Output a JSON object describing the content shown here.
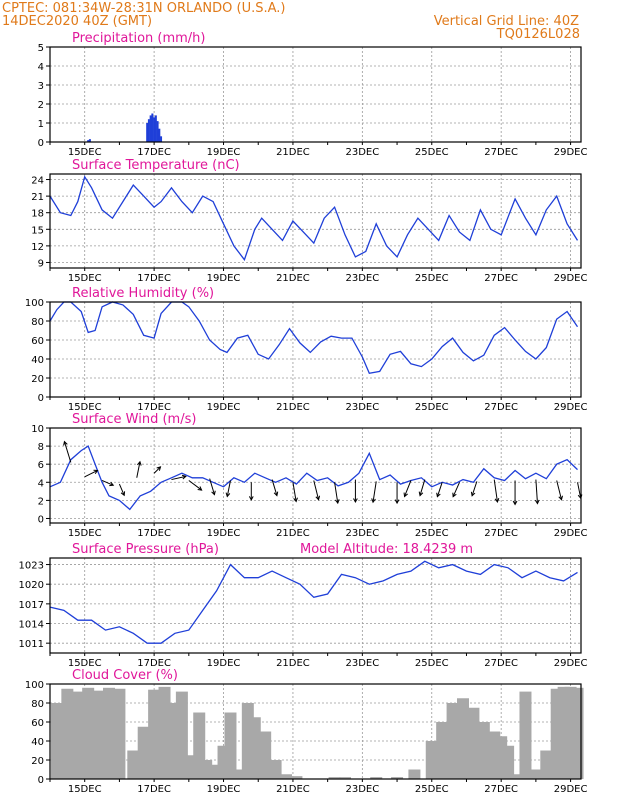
{
  "header": {
    "line1": "CPTEC:   081:34W-28:31N   ORLANDO (U.S.A.)",
    "line2": "14DEC2020 40Z (GMT)",
    "right1": "Vertical Grid Line: 40Z",
    "right2": "TQ0126L028"
  },
  "colors": {
    "header": "#e07a1a",
    "title": "#e0179a",
    "line": "#1f3fd8",
    "cloud": "#a8a8a8",
    "grid": "#9a9a9a"
  },
  "x_tick_labels": [
    "15DEC",
    "17DEC",
    "19DEC",
    "21DEC",
    "23DEC",
    "25DEC",
    "27DEC",
    "29DEC"
  ],
  "chart_data": [
    {
      "type": "bar",
      "id": "precip",
      "title": "Precipitation (mm/h)",
      "xrange": [
        0,
        15.3
      ],
      "ylim": [
        0,
        5
      ],
      "yticks": [
        0,
        1,
        2,
        3,
        4,
        5
      ],
      "grid": true,
      "points": [
        [
          1.1,
          0.1
        ],
        [
          1.15,
          0.15
        ],
        [
          2.8,
          1.0
        ],
        [
          2.85,
          1.2
        ],
        [
          2.9,
          1.4
        ],
        [
          2.95,
          1.5
        ],
        [
          3.0,
          1.3
        ],
        [
          3.05,
          1.4
        ],
        [
          3.1,
          1.1
        ],
        [
          3.15,
          0.7
        ],
        [
          3.2,
          0.3
        ]
      ]
    },
    {
      "type": "line",
      "id": "temp",
      "title": "Surface Temperature (nC)",
      "xrange": [
        0,
        15.3
      ],
      "ylim": [
        8,
        25
      ],
      "yticks": [
        9,
        12,
        15,
        18,
        21,
        24
      ],
      "grid": true,
      "points": [
        [
          0.0,
          21
        ],
        [
          0.3,
          18
        ],
        [
          0.6,
          17.5
        ],
        [
          0.8,
          20
        ],
        [
          1.0,
          24.5
        ],
        [
          1.2,
          22.5
        ],
        [
          1.5,
          18.5
        ],
        [
          1.8,
          17
        ],
        [
          2.1,
          20
        ],
        [
          2.4,
          23
        ],
        [
          2.7,
          21
        ],
        [
          3.0,
          19
        ],
        [
          3.2,
          20
        ],
        [
          3.5,
          22.5
        ],
        [
          3.8,
          20
        ],
        [
          4.1,
          18
        ],
        [
          4.4,
          21
        ],
        [
          4.7,
          20
        ],
        [
          5.0,
          16
        ],
        [
          5.3,
          12
        ],
        [
          5.6,
          9.5
        ],
        [
          5.9,
          15
        ],
        [
          6.1,
          17
        ],
        [
          6.4,
          15
        ],
        [
          6.7,
          13
        ],
        [
          7.0,
          16.5
        ],
        [
          7.3,
          14.5
        ],
        [
          7.6,
          12.5
        ],
        [
          7.9,
          17
        ],
        [
          8.2,
          19
        ],
        [
          8.5,
          14
        ],
        [
          8.8,
          10
        ],
        [
          9.1,
          11
        ],
        [
          9.4,
          16
        ],
        [
          9.7,
          12
        ],
        [
          10.0,
          10
        ],
        [
          10.3,
          14
        ],
        [
          10.6,
          17
        ],
        [
          10.9,
          15
        ],
        [
          11.2,
          13
        ],
        [
          11.5,
          17.5
        ],
        [
          11.8,
          14.5
        ],
        [
          12.1,
          13
        ],
        [
          12.4,
          18.5
        ],
        [
          12.7,
          15
        ],
        [
          13.0,
          14
        ],
        [
          13.4,
          20.5
        ],
        [
          13.7,
          17
        ],
        [
          14.0,
          14
        ],
        [
          14.3,
          18.5
        ],
        [
          14.6,
          21
        ],
        [
          14.9,
          16
        ],
        [
          15.2,
          13
        ]
      ]
    },
    {
      "type": "line",
      "id": "humidity",
      "title": "Relative Humidity (%)",
      "xrange": [
        0,
        15.3
      ],
      "ylim": [
        0,
        100
      ],
      "yticks": [
        0,
        20,
        40,
        60,
        80,
        100
      ],
      "grid": true,
      "points": [
        [
          0.0,
          80
        ],
        [
          0.2,
          92
        ],
        [
          0.4,
          100
        ],
        [
          0.6,
          100
        ],
        [
          0.9,
          90
        ],
        [
          1.1,
          68
        ],
        [
          1.3,
          70
        ],
        [
          1.5,
          95
        ],
        [
          1.8,
          100
        ],
        [
          2.1,
          97
        ],
        [
          2.4,
          87
        ],
        [
          2.7,
          65
        ],
        [
          3.0,
          62
        ],
        [
          3.2,
          88
        ],
        [
          3.5,
          100
        ],
        [
          3.8,
          100
        ],
        [
          4.0,
          95
        ],
        [
          4.3,
          80
        ],
        [
          4.6,
          60
        ],
        [
          4.9,
          50
        ],
        [
          5.1,
          47
        ],
        [
          5.4,
          62
        ],
        [
          5.7,
          65
        ],
        [
          6.0,
          45
        ],
        [
          6.3,
          40
        ],
        [
          6.6,
          55
        ],
        [
          6.9,
          72
        ],
        [
          7.2,
          57
        ],
        [
          7.5,
          47
        ],
        [
          7.8,
          58
        ],
        [
          8.1,
          64
        ],
        [
          8.4,
          62
        ],
        [
          8.7,
          62
        ],
        [
          9.0,
          42
        ],
        [
          9.2,
          25
        ],
        [
          9.5,
          27
        ],
        [
          9.8,
          45
        ],
        [
          10.1,
          48
        ],
        [
          10.4,
          35
        ],
        [
          10.7,
          32
        ],
        [
          11.0,
          40
        ],
        [
          11.3,
          53
        ],
        [
          11.6,
          62
        ],
        [
          11.9,
          47
        ],
        [
          12.2,
          38
        ],
        [
          12.5,
          44
        ],
        [
          12.8,
          65
        ],
        [
          13.1,
          73
        ],
        [
          13.4,
          60
        ],
        [
          13.7,
          48
        ],
        [
          14.0,
          40
        ],
        [
          14.3,
          52
        ],
        [
          14.6,
          82
        ],
        [
          14.9,
          90
        ],
        [
          15.2,
          74
        ]
      ]
    },
    {
      "type": "line",
      "id": "wind",
      "title": "Surface Wind (m/s)",
      "xrange": [
        0,
        15.3
      ],
      "ylim": [
        -0.5,
        10
      ],
      "yticks": [
        0,
        2,
        4,
        6,
        8,
        10
      ],
      "grid": true,
      "points": [
        [
          0.0,
          3.5
        ],
        [
          0.3,
          4
        ],
        [
          0.6,
          6.5
        ],
        [
          0.9,
          7.5
        ],
        [
          1.1,
          8
        ],
        [
          1.3,
          6
        ],
        [
          1.5,
          4
        ],
        [
          1.7,
          2.5
        ],
        [
          2.0,
          2
        ],
        [
          2.3,
          1
        ],
        [
          2.6,
          2.5
        ],
        [
          2.9,
          3
        ],
        [
          3.2,
          4
        ],
        [
          3.5,
          4.5
        ],
        [
          3.8,
          5
        ],
        [
          4.1,
          4.5
        ],
        [
          4.4,
          4.5
        ],
        [
          4.7,
          4
        ],
        [
          5.0,
          3.5
        ],
        [
          5.3,
          4.5
        ],
        [
          5.6,
          4
        ],
        [
          5.9,
          5
        ],
        [
          6.2,
          4.5
        ],
        [
          6.5,
          4
        ],
        [
          6.8,
          4.5
        ],
        [
          7.1,
          3.8
        ],
        [
          7.4,
          5
        ],
        [
          7.7,
          4.2
        ],
        [
          8.0,
          4.5
        ],
        [
          8.3,
          3.6
        ],
        [
          8.6,
          4
        ],
        [
          8.9,
          5
        ],
        [
          9.2,
          7.2
        ],
        [
          9.5,
          4.3
        ],
        [
          9.8,
          4.8
        ],
        [
          10.1,
          3.8
        ],
        [
          10.4,
          4.2
        ],
        [
          10.7,
          4.5
        ],
        [
          11.0,
          3.5
        ],
        [
          11.3,
          4
        ],
        [
          11.6,
          3.7
        ],
        [
          11.9,
          4.3
        ],
        [
          12.2,
          4
        ],
        [
          12.5,
          5.5
        ],
        [
          12.8,
          4.5
        ],
        [
          13.1,
          4.2
        ],
        [
          13.4,
          5.3
        ],
        [
          13.7,
          4.4
        ],
        [
          14.0,
          5
        ],
        [
          14.3,
          4.4
        ],
        [
          14.6,
          6
        ],
        [
          14.9,
          6.5
        ],
        [
          15.2,
          5.4
        ]
      ]
    },
    {
      "type": "line",
      "id": "pressure",
      "title": "Surface Pressure (hPa)",
      "annotation": "Model Altitude: 18.4239 m",
      "xrange": [
        0,
        15.3
      ],
      "ylim": [
        1009.5,
        1024
      ],
      "yticks": [
        1011,
        1014,
        1017,
        1020,
        1023
      ],
      "grid": true,
      "points": [
        [
          0.0,
          1016.5
        ],
        [
          0.4,
          1016
        ],
        [
          0.8,
          1014.5
        ],
        [
          1.2,
          1014.5
        ],
        [
          1.6,
          1013
        ],
        [
          2.0,
          1013.5
        ],
        [
          2.4,
          1012.5
        ],
        [
          2.8,
          1011
        ],
        [
          3.2,
          1011
        ],
        [
          3.6,
          1012.5
        ],
        [
          4.0,
          1013
        ],
        [
          4.4,
          1016
        ],
        [
          4.8,
          1019
        ],
        [
          5.2,
          1023
        ],
        [
          5.6,
          1021
        ],
        [
          6.0,
          1021
        ],
        [
          6.4,
          1022
        ],
        [
          6.8,
          1021
        ],
        [
          7.2,
          1020
        ],
        [
          7.6,
          1018
        ],
        [
          8.0,
          1018.5
        ],
        [
          8.4,
          1021.5
        ],
        [
          8.8,
          1021
        ],
        [
          9.2,
          1020
        ],
        [
          9.6,
          1020.5
        ],
        [
          10.0,
          1021.5
        ],
        [
          10.4,
          1022
        ],
        [
          10.8,
          1023.5
        ],
        [
          11.2,
          1022.5
        ],
        [
          11.6,
          1023
        ],
        [
          12.0,
          1022
        ],
        [
          12.4,
          1021.5
        ],
        [
          12.8,
          1023
        ],
        [
          13.2,
          1022.5
        ],
        [
          13.6,
          1021
        ],
        [
          14.0,
          1022
        ],
        [
          14.4,
          1021
        ],
        [
          14.8,
          1020.5
        ],
        [
          15.2,
          1021.8
        ]
      ]
    },
    {
      "type": "bar",
      "id": "cloud",
      "title": "Cloud Cover (%)",
      "xrange": [
        0,
        15.3
      ],
      "ylim": [
        0,
        100
      ],
      "yticks": [
        0,
        20,
        40,
        60,
        80,
        100
      ],
      "grid": true,
      "points": [
        [
          0.2,
          80
        ],
        [
          0.5,
          95
        ],
        [
          0.8,
          92
        ],
        [
          1.1,
          96
        ],
        [
          1.4,
          93
        ],
        [
          1.7,
          96
        ],
        [
          2.0,
          95
        ],
        [
          2.4,
          30
        ],
        [
          2.7,
          55
        ],
        [
          3.0,
          94
        ],
        [
          3.3,
          97
        ],
        [
          3.6,
          80
        ],
        [
          3.8,
          92
        ],
        [
          4.1,
          25
        ],
        [
          4.3,
          70
        ],
        [
          4.5,
          20
        ],
        [
          4.8,
          15
        ],
        [
          5.0,
          35
        ],
        [
          5.2,
          70
        ],
        [
          5.5,
          10
        ],
        [
          5.7,
          80
        ],
        [
          5.9,
          65
        ],
        [
          6.2,
          50
        ],
        [
          6.5,
          20
        ],
        [
          6.8,
          5
        ],
        [
          7.1,
          3
        ],
        [
          8.2,
          2
        ],
        [
          8.5,
          2
        ],
        [
          9.4,
          2
        ],
        [
          10.0,
          2
        ],
        [
          10.5,
          10
        ],
        [
          11.0,
          40
        ],
        [
          11.3,
          60
        ],
        [
          11.6,
          80
        ],
        [
          11.9,
          85
        ],
        [
          12.2,
          75
        ],
        [
          12.5,
          60
        ],
        [
          12.8,
          50
        ],
        [
          13.0,
          45
        ],
        [
          13.2,
          35
        ],
        [
          13.5,
          5
        ],
        [
          13.7,
          92
        ],
        [
          14.0,
          10
        ],
        [
          14.3,
          30
        ],
        [
          14.6,
          95
        ],
        [
          14.8,
          97
        ],
        [
          15.0,
          97
        ],
        [
          15.2,
          96
        ]
      ]
    }
  ],
  "wind_arrows": [
    [
      0.6,
      6.2,
      -0.4,
      1.3
    ],
    [
      1.0,
      4.6,
      0.8,
      0.4
    ],
    [
      1.5,
      4.2,
      0.7,
      -0.3
    ],
    [
      2.0,
      3.8,
      0.3,
      -0.7
    ],
    [
      2.5,
      4.5,
      0.2,
      1.0
    ],
    [
      3.0,
      5.0,
      0.4,
      0.4
    ],
    [
      3.5,
      4.3,
      0.9,
      0.2
    ],
    [
      4.0,
      4.2,
      0.8,
      -0.6
    ],
    [
      4.6,
      4.4,
      0.3,
      -1.0
    ],
    [
      5.2,
      4.2,
      -0.2,
      -1.0
    ],
    [
      5.8,
      4.0,
      0.0,
      -1.1
    ],
    [
      6.4,
      4.3,
      0.3,
      -1.0
    ],
    [
      7.0,
      4.0,
      0.2,
      -1.2
    ],
    [
      7.6,
      4.2,
      0.3,
      -1.2
    ],
    [
      8.2,
      4.0,
      0.2,
      -1.3
    ],
    [
      8.8,
      4.3,
      0.0,
      -1.4
    ],
    [
      9.4,
      4.1,
      -0.2,
      -1.3
    ],
    [
      10.0,
      4.0,
      0.0,
      -1.3
    ],
    [
      10.4,
      4.2,
      -0.4,
      -1.0
    ],
    [
      10.8,
      4.3,
      -0.3,
      -1.0
    ],
    [
      11.3,
      4.0,
      -0.3,
      -0.9
    ],
    [
      11.8,
      4.0,
      -0.4,
      -0.9
    ],
    [
      12.3,
      4.1,
      -0.3,
      -0.9
    ],
    [
      12.8,
      4.3,
      0.2,
      -1.4
    ],
    [
      13.4,
      4.2,
      0.0,
      -1.5
    ],
    [
      14.0,
      4.3,
      0.1,
      -1.5
    ],
    [
      14.6,
      4.2,
      0.3,
      -1.2
    ],
    [
      15.2,
      4.0,
      0.2,
      -1.0
    ]
  ]
}
